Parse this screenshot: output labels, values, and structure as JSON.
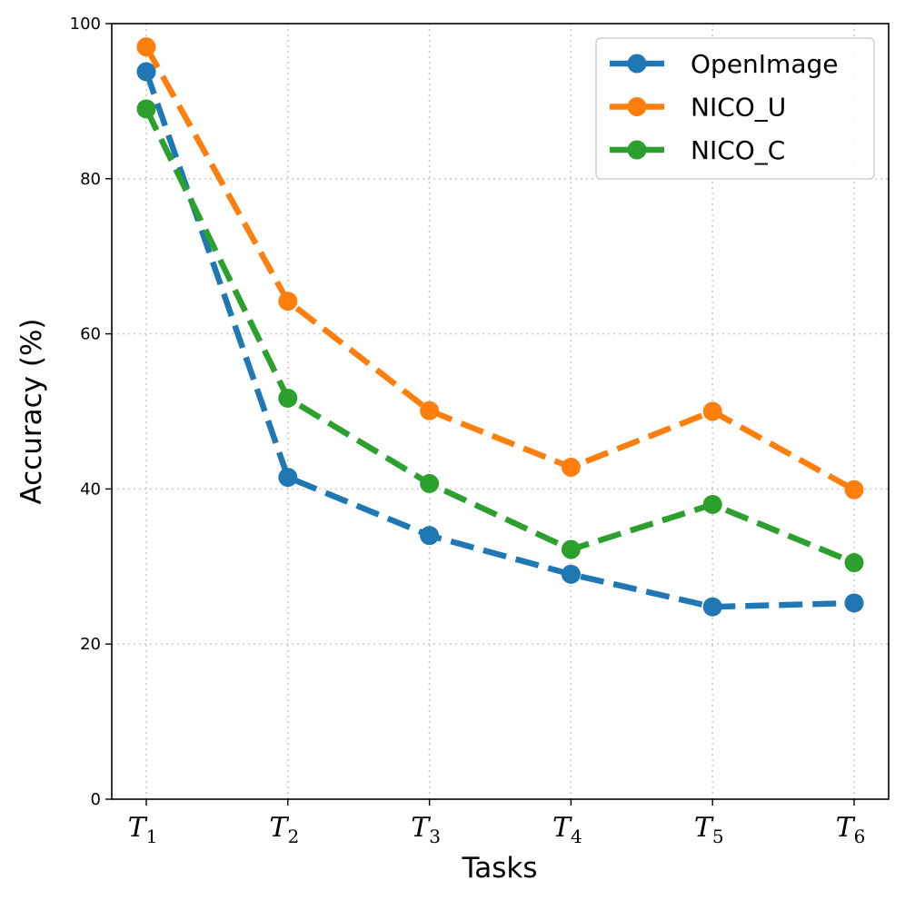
{
  "chart_data": {
    "type": "line",
    "xlabel": "Tasks",
    "ylabel": "Accuracy (%)",
    "categories": [
      {
        "base": "T",
        "sub": "1"
      },
      {
        "base": "T",
        "sub": "2"
      },
      {
        "base": "T",
        "sub": "3"
      },
      {
        "base": "T",
        "sub": "4"
      },
      {
        "base": "T",
        "sub": "5"
      },
      {
        "base": "T",
        "sub": "6"
      }
    ],
    "ylim": [
      0,
      100
    ],
    "yticks": [
      0,
      20,
      40,
      60,
      80,
      100
    ],
    "grid": true,
    "legend_position": "top-right",
    "series": [
      {
        "name": "OpenImage",
        "color": "#1f77b4",
        "values": [
          93.8,
          41.5,
          34.0,
          29.0,
          24.8,
          25.3
        ]
      },
      {
        "name": "NICO_U",
        "color": "#ff7f0e",
        "values": [
          97.0,
          64.2,
          50.1,
          42.8,
          50.0,
          39.9
        ]
      },
      {
        "name": "NICO_C",
        "color": "#2ca02c",
        "values": [
          89.0,
          51.7,
          40.7,
          32.2,
          38.0,
          30.5
        ]
      }
    ]
  }
}
